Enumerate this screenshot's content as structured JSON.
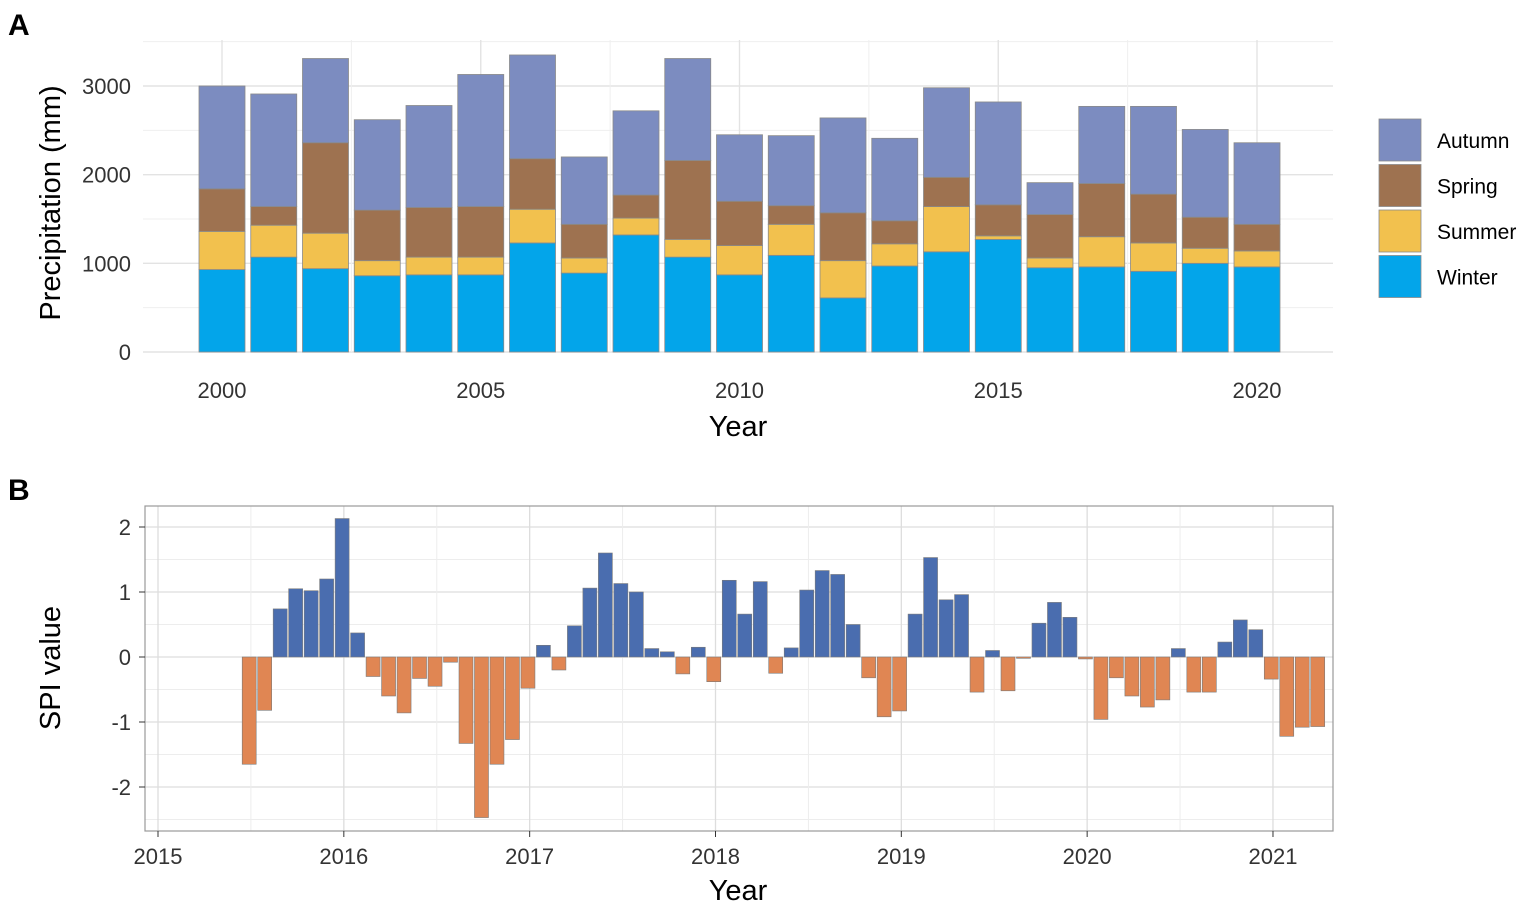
{
  "chart_data": [
    {
      "panel": "A",
      "type": "bar",
      "stacked": true,
      "xlabel": "Year",
      "ylabel": "Precipitation (mm)",
      "ylim": [
        0,
        3500
      ],
      "yticks": [
        0,
        1000,
        2000,
        3000
      ],
      "xticks": [
        2000,
        2005,
        2010,
        2015,
        2020
      ],
      "legend_position": "right",
      "categories": [
        2000,
        2001,
        2002,
        2003,
        2004,
        2005,
        2006,
        2007,
        2008,
        2009,
        2010,
        2011,
        2012,
        2013,
        2014,
        2015,
        2016,
        2017,
        2018,
        2019,
        2020
      ],
      "series": [
        {
          "name": "Winter",
          "color": "#03A5EA",
          "values": [
            930,
            1070,
            940,
            860,
            870,
            870,
            1230,
            890,
            1320,
            1070,
            870,
            1090,
            610,
            970,
            1130,
            1270,
            950,
            960,
            910,
            1000,
            960
          ]
        },
        {
          "name": "Summer",
          "color": "#F2C14E",
          "values": [
            430,
            360,
            400,
            170,
            200,
            200,
            380,
            170,
            190,
            200,
            330,
            350,
            420,
            250,
            510,
            40,
            110,
            340,
            320,
            170,
            180
          ]
        },
        {
          "name": "Spring",
          "color": "#9E7250",
          "values": [
            480,
            210,
            1020,
            570,
            560,
            570,
            570,
            380,
            260,
            890,
            500,
            210,
            540,
            260,
            330,
            350,
            490,
            600,
            550,
            350,
            300
          ]
        },
        {
          "name": "Autumn",
          "color": "#7C8CC0",
          "values": [
            1160,
            1270,
            950,
            1020,
            1150,
            1490,
            1170,
            760,
            950,
            1150,
            750,
            790,
            1070,
            930,
            1010,
            1160,
            360,
            870,
            990,
            990,
            920
          ]
        }
      ],
      "legend_order": [
        "Autumn",
        "Spring",
        "Summer",
        "Winter"
      ]
    },
    {
      "panel": "B",
      "type": "bar",
      "xlabel": "Year",
      "ylabel": "SPI value",
      "ylim": [
        -2.6,
        2.3
      ],
      "yticks": [
        -2,
        -1,
        0,
        1,
        2
      ],
      "ytick_labels": [
        "-2",
        "-1",
        "0",
        "1",
        "2"
      ],
      "xticks": [
        "2015",
        "2016",
        "2017",
        "2018",
        "2019",
        "2020",
        "2021"
      ],
      "time_start": "2015-04",
      "positive_color": "#4A6DAF",
      "negative_color": "#E08653",
      "values": [
        -1.65,
        -0.82,
        0.74,
        1.05,
        1.02,
        1.2,
        2.13,
        0.37,
        -0.3,
        -0.6,
        -0.86,
        -0.33,
        -0.45,
        -0.08,
        -1.33,
        -2.47,
        -1.65,
        -1.27,
        -0.48,
        0.18,
        -0.2,
        0.48,
        1.06,
        1.6,
        1.13,
        1.0,
        0.13,
        0.08,
        -0.26,
        0.15,
        -0.38,
        1.18,
        0.66,
        1.16,
        -0.25,
        0.14,
        1.03,
        1.33,
        1.27,
        0.5,
        -0.32,
        -0.92,
        -0.83,
        0.66,
        1.53,
        0.88,
        0.96,
        -0.54,
        0.1,
        -0.52,
        -0.02,
        0.52,
        0.84,
        0.61,
        -0.03,
        -0.96,
        -0.32,
        -0.6,
        -0.77,
        -0.66,
        0.13,
        -0.54,
        -0.54,
        0.23,
        0.57,
        0.42,
        -0.34,
        -1.22,
        -1.08,
        -1.07
      ]
    }
  ],
  "panel_labels": {
    "a": "A",
    "b": "B"
  }
}
